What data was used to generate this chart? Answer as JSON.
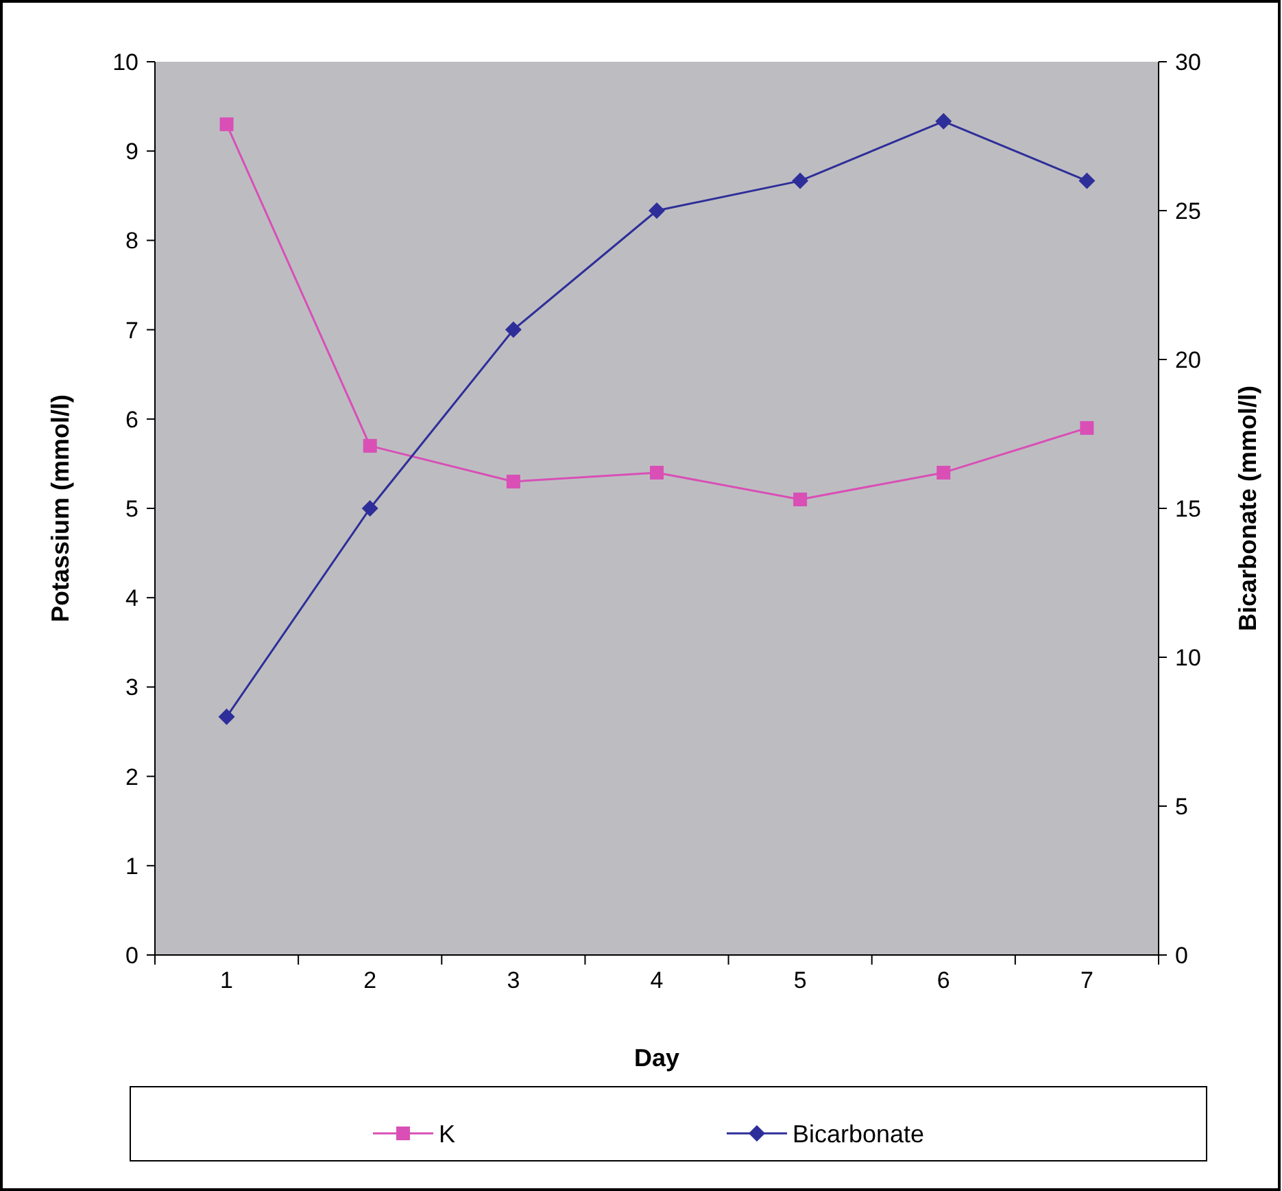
{
  "chart_data": {
    "type": "line",
    "xlabel": "Day",
    "ylabel": "Potassium (mmol/l)",
    "y2label": "Bicarbonate (mmol/l)",
    "categories": [
      "1",
      "2",
      "3",
      "4",
      "5",
      "6",
      "7"
    ],
    "series": [
      {
        "name": "K",
        "color": "#d94fb6",
        "marker": "square",
        "values": [
          9.3,
          5.7,
          5.3,
          5.4,
          5.1,
          5.4,
          5.9
        ]
      },
      {
        "name": "Bicarbonate",
        "color": "#2e2e9a",
        "marker": "diamond",
        "axis": "y2",
        "values": [
          8,
          15,
          21,
          25,
          26,
          28,
          26
        ]
      }
    ],
    "ylim": [
      0,
      10
    ],
    "yticks": [
      0,
      1,
      2,
      3,
      4,
      5,
      6,
      7,
      8,
      9,
      10
    ],
    "y2lim": [
      0,
      30
    ],
    "y2ticks": [
      0,
      5,
      10,
      15,
      20,
      25,
      30
    ],
    "grid": false,
    "legend": "bottom",
    "line_style": "solid"
  }
}
